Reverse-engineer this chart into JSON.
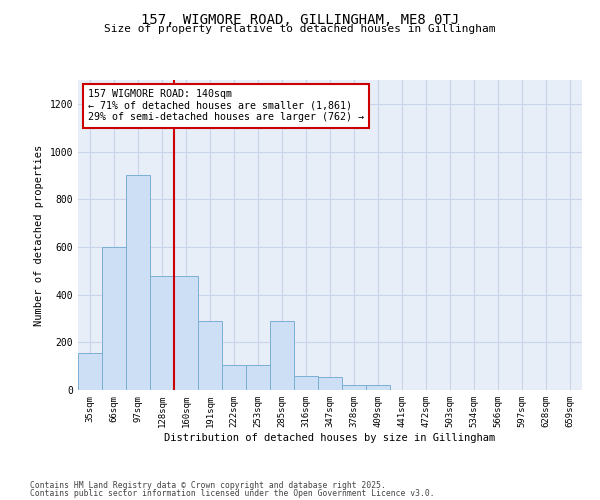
{
  "title": "157, WIGMORE ROAD, GILLINGHAM, ME8 0TJ",
  "subtitle": "Size of property relative to detached houses in Gillingham",
  "xlabel": "Distribution of detached houses by size in Gillingham",
  "ylabel": "Number of detached properties",
  "categories": [
    "35sqm",
    "66sqm",
    "97sqm",
    "128sqm",
    "160sqm",
    "191sqm",
    "222sqm",
    "253sqm",
    "285sqm",
    "316sqm",
    "347sqm",
    "378sqm",
    "409sqm",
    "441sqm",
    "472sqm",
    "503sqm",
    "534sqm",
    "566sqm",
    "597sqm",
    "628sqm",
    "659sqm"
  ],
  "values": [
    155,
    600,
    900,
    480,
    480,
    290,
    105,
    105,
    290,
    60,
    55,
    20,
    20,
    0,
    0,
    0,
    0,
    0,
    0,
    0,
    0
  ],
  "bar_color": "#ccdff5",
  "bar_edge_color": "#7bafd4",
  "bar_linewidth": 0.7,
  "vline_pos": 3.5,
  "vline_color": "#cc0000",
  "annotation_text": "157 WIGMORE ROAD: 140sqm\n← 71% of detached houses are smaller (1,861)\n29% of semi-detached houses are larger (762) →",
  "annotation_box_facecolor": "#ffffff",
  "annotation_box_edgecolor": "#cc0000",
  "ylim": [
    0,
    1300
  ],
  "yticks": [
    0,
    200,
    400,
    600,
    800,
    1000,
    1200
  ],
  "grid_color": "#c8d4e8",
  "background_color": "#e8eef8",
  "footer1": "Contains HM Land Registry data © Crown copyright and database right 2025.",
  "footer2": "Contains public sector information licensed under the Open Government Licence v3.0."
}
